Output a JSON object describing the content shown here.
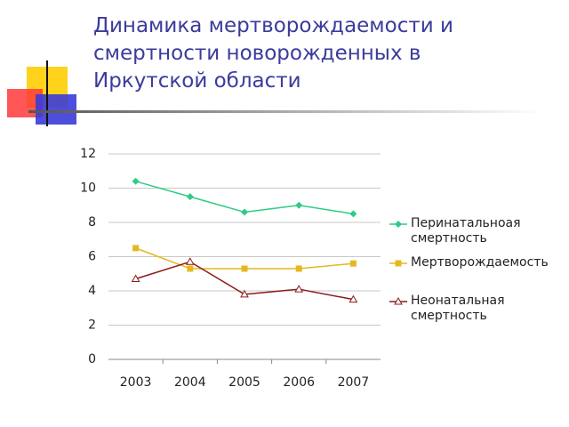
{
  "chart_data": {
    "type": "line",
    "title": "Динамика мертворождаемости и смертности новорожденных в Иркутской области",
    "categories": [
      "2003",
      "2004",
      "2005",
      "2006",
      "2007"
    ],
    "series": [
      {
        "name": "Перинатальноая смертность",
        "color": "#2ecc85",
        "marker": "diamond",
        "values": [
          10.4,
          9.5,
          8.6,
          9.0,
          8.5
        ]
      },
      {
        "name": "Мертворождаемость",
        "color": "#e6b820",
        "marker": "square",
        "values": [
          6.5,
          5.3,
          5.3,
          5.3,
          5.6
        ]
      },
      {
        "name": "Неонатальная смертность",
        "color": "#8b1a1a",
        "marker": "triangle",
        "values": [
          4.7,
          5.7,
          3.8,
          4.1,
          3.5
        ]
      }
    ],
    "ylim": [
      0,
      12
    ],
    "yticks": [
      0,
      2,
      4,
      6,
      8,
      10,
      12
    ],
    "grid": true,
    "legend": "right"
  }
}
